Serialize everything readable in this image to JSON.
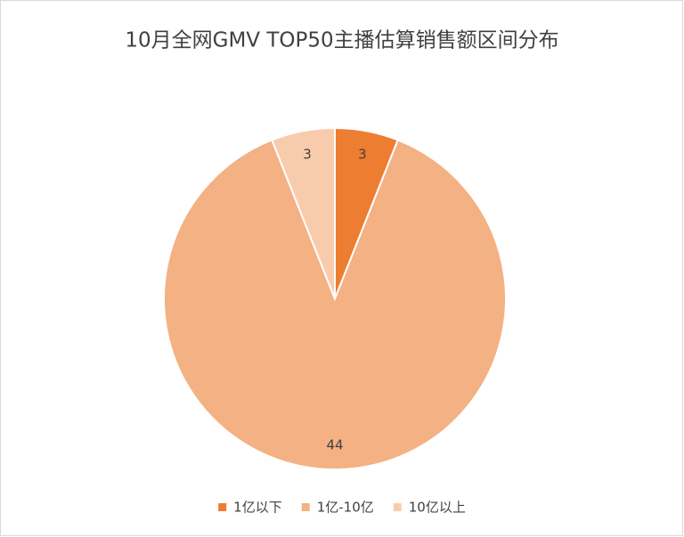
{
  "chart_data": {
    "type": "pie",
    "title": "10月全网GMV TOP50主播估算销售额区间分布",
    "categories": [
      "1亿以下",
      "1亿-10亿",
      "10亿以上"
    ],
    "values": [
      3,
      44,
      3
    ],
    "colors": [
      "#ed7d31",
      "#f4b183",
      "#f8cbad"
    ],
    "legend": "bottom"
  }
}
